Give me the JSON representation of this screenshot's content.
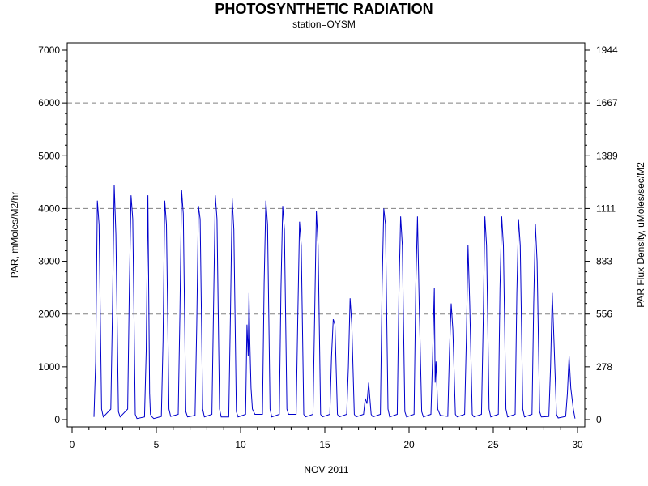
{
  "chart_data": {
    "type": "line",
    "title": "PHOTOSYNTHETIC RADIATION",
    "subtitle": "station=OYSM",
    "xlabel": "NOV 2011",
    "ylabel": "PAR, mMoles/M2/hr",
    "ylabel_right": "PAR Flux Density, uMoles/sec/M2",
    "xlim": [
      0,
      30
    ],
    "ylim": [
      0,
      7000
    ],
    "x_ticks": [
      0,
      5,
      10,
      15,
      20,
      25,
      30
    ],
    "y_ticks": [
      0,
      1000,
      2000,
      3000,
      4000,
      5000,
      6000,
      7000
    ],
    "y_right_ticks": [
      {
        "value": 0,
        "label": "0"
      },
      {
        "value": 1000,
        "label": "278"
      },
      {
        "value": 2000,
        "label": "556"
      },
      {
        "value": 3000,
        "label": "833"
      },
      {
        "value": 4000,
        "label": "1111"
      },
      {
        "value": 5000,
        "label": "1389"
      },
      {
        "value": 6000,
        "label": "1667"
      },
      {
        "value": 7000,
        "label": "1944"
      }
    ],
    "gridlines": [
      2000,
      4000,
      6000
    ],
    "line_color": "#0000cc",
    "series": [
      {
        "x": [
          1.3,
          1.4,
          1.5,
          1.6,
          1.75,
          1.85,
          2.3,
          2.4,
          2.5,
          2.6,
          2.75,
          2.85,
          3.3,
          3.4,
          3.5,
          3.6,
          3.75,
          3.85,
          4.3,
          4.4,
          4.5,
          4.6,
          4.65,
          4.75,
          4.85,
          5.3,
          5.4,
          5.5,
          5.6,
          5.75,
          5.85,
          6.3,
          6.4,
          6.5,
          6.6,
          6.75,
          6.85,
          7.3,
          7.4,
          7.5,
          7.6,
          7.75,
          7.85,
          8.3,
          8.4,
          8.5,
          8.6,
          8.75,
          8.85,
          9.3,
          9.4,
          9.5,
          9.6,
          9.75,
          9.85,
          10.3,
          10.38,
          10.45,
          10.5,
          10.55,
          10.62,
          10.7,
          10.85,
          11.3,
          11.4,
          11.5,
          11.6,
          11.75,
          11.85,
          12.3,
          12.4,
          12.5,
          12.6,
          12.75,
          12.85,
          13.3,
          13.4,
          13.5,
          13.6,
          13.75,
          13.85,
          14.3,
          14.4,
          14.5,
          14.6,
          14.75,
          14.85,
          15.3,
          15.4,
          15.5,
          15.6,
          15.75,
          15.85,
          16.3,
          16.4,
          16.5,
          16.6,
          16.75,
          16.85,
          17.3,
          17.4,
          17.5,
          17.6,
          17.75,
          17.85,
          18.3,
          18.4,
          18.5,
          18.6,
          18.75,
          18.85,
          19.3,
          19.4,
          19.5,
          19.6,
          19.75,
          19.85,
          20.3,
          20.4,
          20.5,
          20.6,
          20.75,
          20.85,
          21.3,
          21.4,
          21.5,
          21.55,
          21.6,
          21.7,
          21.85,
          22.3,
          22.4,
          22.5,
          22.6,
          22.75,
          22.85,
          23.3,
          23.4,
          23.5,
          23.6,
          23.75,
          23.85,
          24.3,
          24.4,
          24.5,
          24.6,
          24.75,
          24.85,
          25.3,
          25.4,
          25.5,
          25.6,
          25.75,
          25.85,
          26.3,
          26.4,
          26.5,
          26.6,
          26.75,
          26.85,
          27.3,
          27.4,
          27.5,
          27.6,
          27.75,
          27.85,
          28.3,
          28.4,
          28.5,
          28.6,
          28.75,
          28.85,
          29.3,
          29.4,
          29.5,
          29.6,
          29.75,
          29.85
        ],
        "y": [
          50,
          1100,
          4150,
          3700,
          200,
          50,
          200,
          2100,
          4450,
          3500,
          150,
          50,
          200,
          2500,
          4250,
          3800,
          100,
          20,
          50,
          1300,
          4250,
          500,
          100,
          50,
          20,
          60,
          1500,
          4150,
          3700,
          200,
          60,
          100,
          2000,
          4350,
          3900,
          150,
          50,
          80,
          1800,
          4050,
          3800,
          200,
          50,
          100,
          2200,
          4250,
          3800,
          200,
          50,
          50,
          2000,
          4200,
          3600,
          150,
          50,
          100,
          1800,
          1200,
          2400,
          1500,
          600,
          200,
          100,
          100,
          2600,
          4150,
          3700,
          200,
          50,
          100,
          2500,
          4050,
          3600,
          200,
          100,
          100,
          2000,
          3750,
          3300,
          100,
          50,
          100,
          2000,
          3950,
          3300,
          100,
          50,
          100,
          1200,
          1900,
          1800,
          100,
          50,
          100,
          1000,
          2300,
          1800,
          100,
          50,
          100,
          400,
          300,
          700,
          100,
          50,
          100,
          2500,
          4000,
          3700,
          200,
          50,
          100,
          2400,
          3850,
          3300,
          150,
          50,
          100,
          2500,
          3850,
          2200,
          150,
          50,
          100,
          1200,
          2500,
          700,
          1100,
          200,
          80,
          60,
          1300,
          2200,
          1700,
          100,
          50,
          100,
          1500,
          3300,
          2200,
          100,
          50,
          100,
          1800,
          3850,
          3300,
          200,
          50,
          100,
          2500,
          3850,
          3300,
          200,
          50,
          100,
          2400,
          3800,
          3300,
          200,
          50,
          100,
          2200,
          3700,
          3000,
          150,
          50,
          60,
          1000,
          2400,
          1500,
          100,
          30,
          60,
          500,
          1200,
          600,
          200,
          20
        ]
      }
    ]
  }
}
